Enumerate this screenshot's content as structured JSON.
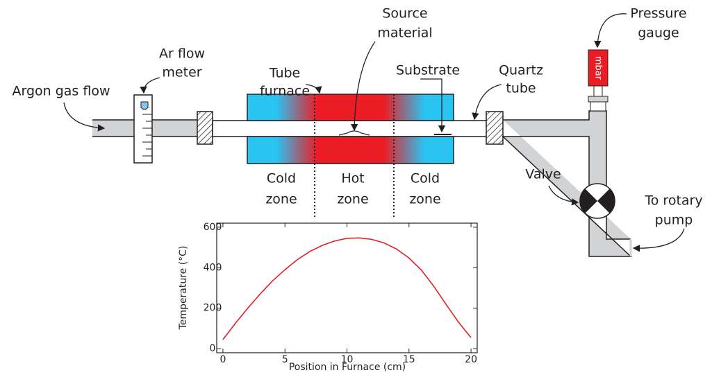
{
  "diagram": {
    "argon_gas_flow": "Argon gas flow",
    "ar_flow_meter": [
      "Ar flow",
      "meter"
    ],
    "tube_furnace": [
      "Tube",
      "furnace"
    ],
    "source_material": [
      "Source",
      "material"
    ],
    "substrate": "Substrate",
    "quartz_tube": [
      "Quartz",
      "tube"
    ],
    "pressure_gauge": [
      "Pressure",
      "gauge"
    ],
    "gauge_unit": "mbar",
    "valve": "Valve",
    "to_rotary_pump": [
      "To rotary",
      "pump"
    ],
    "zones": [
      [
        "Cold",
        "zone"
      ],
      [
        "Hot",
        "zone"
      ],
      [
        "Cold",
        "zone"
      ]
    ]
  },
  "chart_data": {
    "type": "line",
    "xlabel": "Position in Furnace (cm)",
    "ylabel": "Temperature (°C)",
    "x": [
      0,
      1,
      2,
      3,
      4,
      5,
      6,
      7,
      8,
      9,
      10,
      11,
      12,
      13,
      14,
      15,
      16,
      17,
      18,
      19,
      20
    ],
    "values": [
      45,
      125,
      200,
      270,
      335,
      390,
      440,
      480,
      510,
      532,
      545,
      547,
      540,
      522,
      492,
      448,
      388,
      308,
      218,
      130,
      55
    ],
    "color": "#e31e24",
    "xlim": [
      -0.5,
      20.5
    ],
    "xticks": [
      0,
      5,
      10,
      15,
      20
    ],
    "ylim": [
      -20,
      620
    ],
    "yticks": [
      0,
      200,
      400,
      600
    ]
  }
}
